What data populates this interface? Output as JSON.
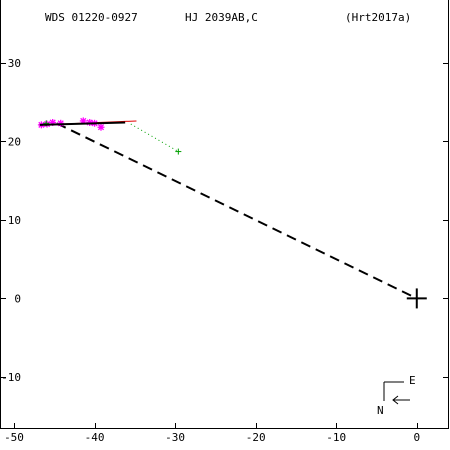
{
  "header": {
    "wds": "WDS 01220-0927",
    "name": "HJ 2039AB,C",
    "ref": "(Hrt2017a)"
  },
  "compass": {
    "east": "E",
    "north": "N"
  },
  "colors": {
    "axes": "#000000",
    "magenta": "#ff00ff",
    "green": "#00a000",
    "red": "#e00000",
    "ink": "#000000"
  },
  "chart_data": {
    "type": "scatter",
    "title": "",
    "xlabel": "",
    "ylabel": "",
    "xlim": [
      -50,
      4
    ],
    "ylim": [
      -16.5,
      38
    ],
    "xticks": [
      -50,
      -40,
      -30,
      -20,
      -10,
      0
    ],
    "yticks": [
      -10,
      0,
      10,
      20,
      30
    ],
    "xtick_labels": [
      "-50",
      "-40",
      "-30",
      "-20",
      "-10",
      "0"
    ],
    "ytick_labels": [
      "-10",
      "0",
      "10",
      "20",
      "30"
    ],
    "primary": {
      "x": 0,
      "y": 0
    },
    "series": [
      {
        "kind": "magenta-stars",
        "points": [
          [
            -46.6,
            22.1
          ],
          [
            -45.9,
            22.2
          ],
          [
            -45.2,
            22.4
          ],
          [
            -44.2,
            22.3
          ],
          [
            -41.4,
            22.6
          ],
          [
            -40.6,
            22.4
          ],
          [
            -40.0,
            22.3
          ],
          [
            -39.2,
            21.8
          ]
        ]
      },
      {
        "kind": "green-cross",
        "points": [
          [
            -46.0,
            22.3
          ],
          [
            -29.6,
            18.7
          ]
        ]
      },
      {
        "kind": "green-dotted",
        "points": [
          [
            -35.5,
            22.2
          ],
          [
            -29.6,
            18.7
          ]
        ]
      },
      {
        "kind": "red-line",
        "points": [
          [
            -46.5,
            22.1
          ],
          [
            -34.8,
            22.6
          ]
        ]
      },
      {
        "kind": "black-solid",
        "points": [
          [
            -46.8,
            22.1
          ],
          [
            -36.2,
            22.4
          ]
        ]
      },
      {
        "kind": "black-dashed",
        "points": [
          [
            -44.7,
            22.3
          ],
          [
            0,
            0
          ]
        ]
      }
    ]
  }
}
